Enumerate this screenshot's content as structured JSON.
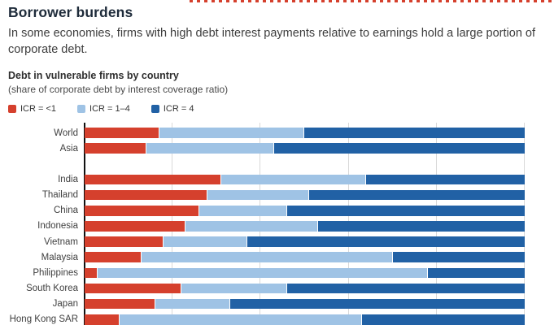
{
  "header": {
    "title": "Borrower burdens",
    "subtitle": "In some economies, firms with high debt interest payments relative to earnings hold a large portion of corporate debt."
  },
  "chart": {
    "title": "Debt in vulnerable firms by country",
    "subtitle": "(share of corporate debt by interest coverage ratio)"
  },
  "chart_data": {
    "type": "bar",
    "orientation": "horizontal-stacked",
    "unit": "percent share of corporate debt",
    "title": "Debt in vulnerable firms by country",
    "subtitle": "(share of corporate debt by interest coverage ratio)",
    "categories": [
      "World",
      "Asia",
      "India",
      "Thailand",
      "China",
      "Indonesia",
      "Vietnam",
      "Malaysia",
      "Philippines",
      "South Korea",
      "Japan",
      "Hong Kong SAR"
    ],
    "group_break_after_index": 1,
    "series": [
      {
        "name": "ICR = <1",
        "color": "#d5402d",
        "values": [
          17,
          14,
          31,
          28,
          26,
          23,
          18,
          13,
          3,
          22,
          16,
          8
        ]
      },
      {
        "name": "ICR = 1–4",
        "color": "#9fc3e5",
        "values": [
          33,
          29,
          33,
          23,
          20,
          30,
          19,
          57,
          75,
          24,
          17,
          55
        ]
      },
      {
        "name": "ICR = 4",
        "color": "#2161a5",
        "values": [
          50,
          57,
          36,
          49,
          54,
          47,
          63,
          30,
          22,
          54,
          67,
          37
        ]
      }
    ],
    "xlim": [
      0,
      100
    ],
    "gridlines_percent": [
      20,
      40,
      60,
      80,
      100
    ],
    "legend_position": "top",
    "grid": "vertical-only"
  },
  "colors": {
    "icr_lt1_red": "#d5402d",
    "icr_1_4_light_blue": "#9fc3e5",
    "icr_gt4_dark_blue": "#2161a5",
    "gridline": "#d9d9d9",
    "axis": "#111111",
    "title_text": "#1e2b3a"
  }
}
